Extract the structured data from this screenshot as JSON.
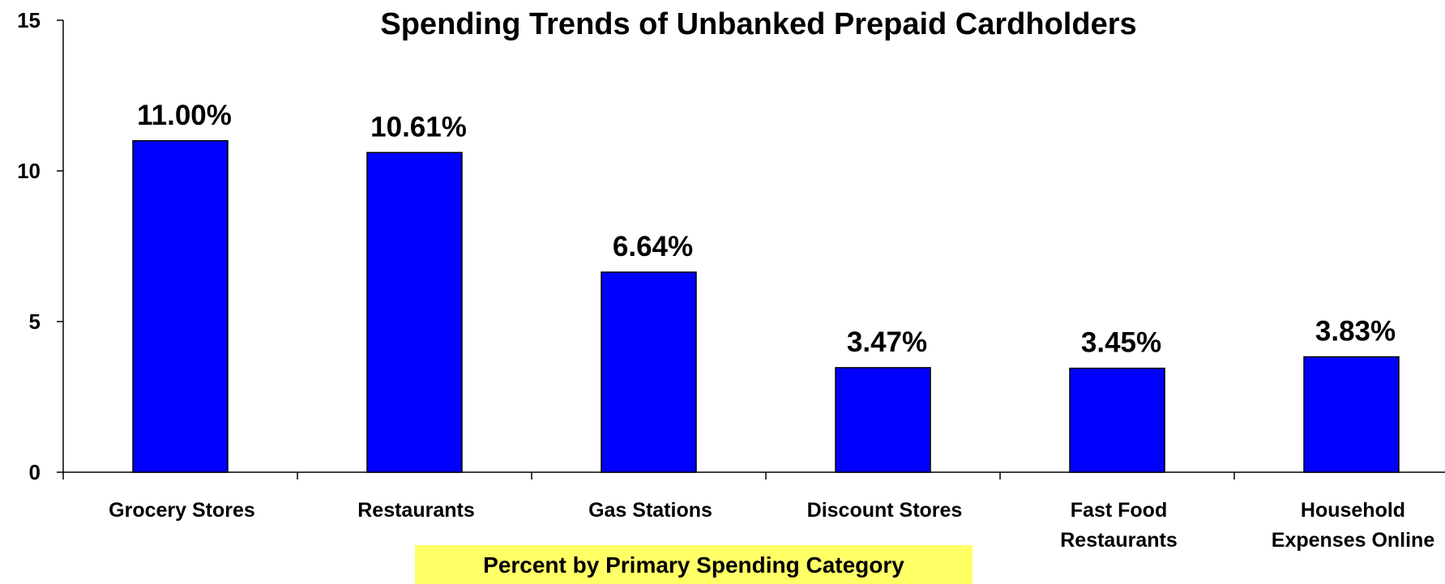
{
  "chart_data": {
    "type": "bar",
    "title": "Spending Trends of Unbanked Prepaid Cardholders",
    "categories": [
      [
        "Grocery Stores"
      ],
      [
        "Restaurants"
      ],
      [
        "Gas Stations"
      ],
      [
        "Discount Stores"
      ],
      [
        "Fast Food",
        "Restaurants"
      ],
      [
        "Household",
        "Expenses Online"
      ]
    ],
    "values": [
      11.0,
      10.61,
      6.64,
      3.47,
      3.45,
      3.83
    ],
    "data_labels": [
      "11.00%",
      "10.61%",
      "6.64%",
      "3.47%",
      "3.45%",
      "3.83%"
    ],
    "xlabel": "Percent by Primary Spending Category",
    "ylabel": "",
    "ylim": [
      0,
      15
    ],
    "yticks": [
      0,
      5,
      10,
      15
    ],
    "ytick_labels": [
      "0",
      "5",
      "10",
      "15"
    ],
    "grid": false,
    "legend": "none",
    "bar_color": "#0000FF",
    "xlabel_background": "#FFFF66"
  }
}
